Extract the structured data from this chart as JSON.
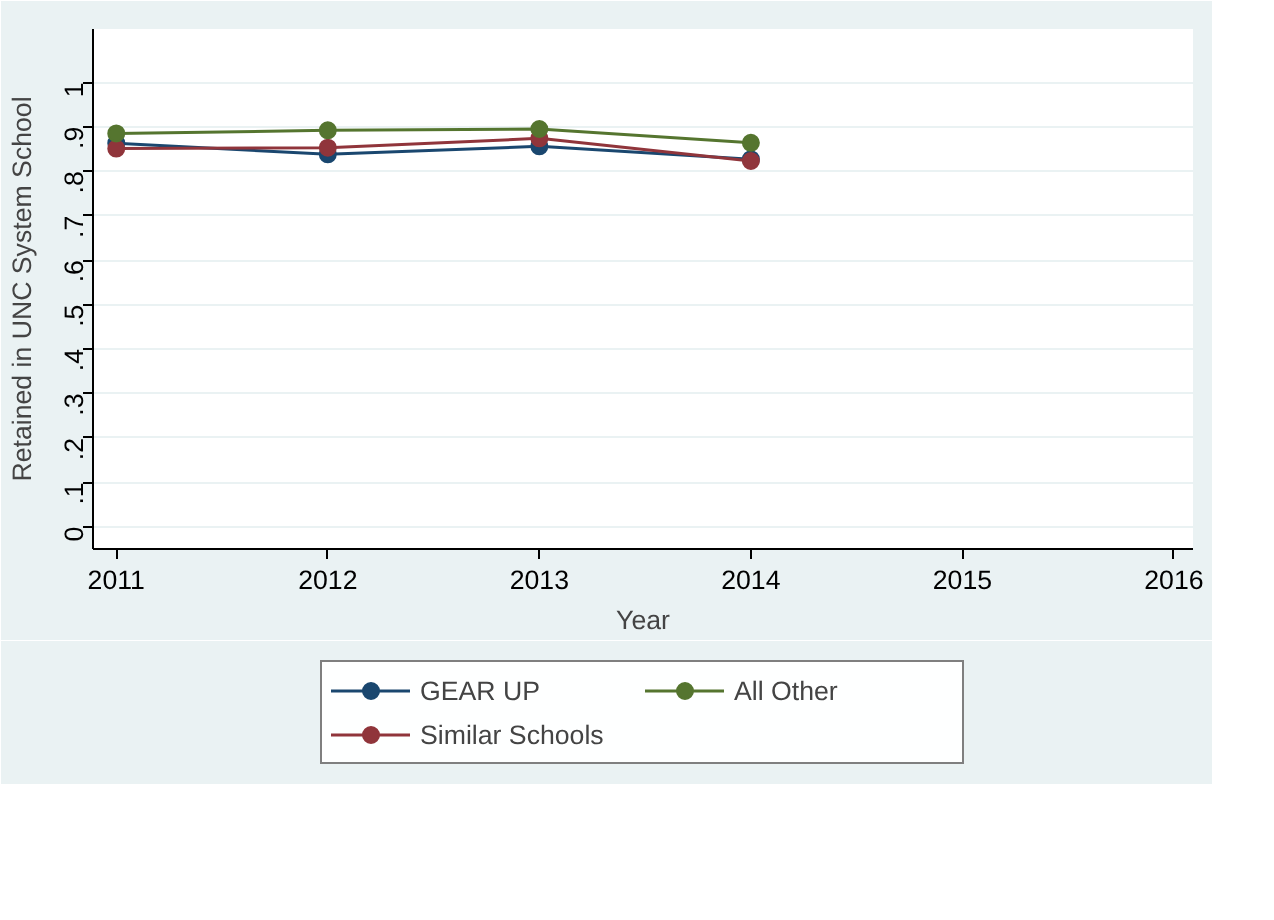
{
  "chart_data": {
    "type": "line",
    "xlabel": "Year",
    "ylabel": "Retained in UNC System School",
    "x": [
      2011,
      2012,
      2013,
      2014
    ],
    "series": [
      {
        "name": "GEAR UP",
        "color": "#1a476f",
        "values": [
          0.863,
          0.838,
          0.856,
          0.827
        ]
      },
      {
        "name": "Similar Schools",
        "color": "#90353b",
        "values": [
          0.851,
          0.853,
          0.874,
          0.823
        ]
      },
      {
        "name": "All Other",
        "color": "#55752f",
        "values": [
          0.885,
          0.892,
          0.895,
          0.864
        ]
      }
    ],
    "xlim": [
      2010.89,
      2016.09
    ],
    "xticks": [
      2011,
      2012,
      2013,
      2014,
      2015,
      2016
    ],
    "ylim": [
      -0.05,
      1.12
    ],
    "yticks": [
      {
        "value": 0,
        "label": "0"
      },
      {
        "value": 0.1,
        "label": ".1"
      },
      {
        "value": 0.2,
        "label": ".2"
      },
      {
        "value": 0.3,
        "label": ".3"
      },
      {
        "value": 0.4,
        "label": ".4"
      },
      {
        "value": 0.5,
        "label": ".5"
      },
      {
        "value": 0.6,
        "label": ".6"
      },
      {
        "value": 0.7,
        "label": ".7"
      },
      {
        "value": 0.8,
        "label": ".8"
      },
      {
        "value": 0.9,
        "label": ".9"
      },
      {
        "value": 1,
        "label": "1"
      }
    ],
    "grid": "y",
    "legend": "bottom",
    "marker": "circle",
    "line_style": "solid"
  }
}
